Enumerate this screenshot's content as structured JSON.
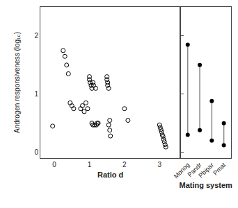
{
  "chart_data": [
    {
      "type": "scatter",
      "x": [
        -0.05,
        0.25,
        0.3,
        0.35,
        0.4,
        0.45,
        0.5,
        0.55,
        0.75,
        0.8,
        0.85,
        0.9,
        0.95,
        1.0,
        1.0,
        1.02,
        1.05,
        1.07,
        1.07,
        1.1,
        1.1,
        1.12,
        1.15,
        1.18,
        1.2,
        1.22,
        1.25,
        1.5,
        1.5,
        1.52,
        1.52,
        1.55,
        1.55,
        1.58,
        1.58,
        1.6,
        2.0,
        2.1,
        3.0,
        3.02,
        3.04,
        3.06,
        3.08,
        3.1,
        3.12,
        3.14,
        3.16,
        3.18
      ],
      "values": [
        0.45,
        1.75,
        1.65,
        1.5,
        1.35,
        0.85,
        0.8,
        0.75,
        0.75,
        0.8,
        0.7,
        0.85,
        0.75,
        1.3,
        1.25,
        1.2,
        1.15,
        1.1,
        0.5,
        1.2,
        0.47,
        1.15,
        0.47,
        1.1,
        0.47,
        0.5,
        0.5,
        1.3,
        1.25,
        1.2,
        1.15,
        1.1,
        0.47,
        0.38,
        0.55,
        0.28,
        0.75,
        0.55,
        0.47,
        0.43,
        0.39,
        0.35,
        0.3,
        0.27,
        0.22,
        0.18,
        0.13,
        0.09
      ],
      "xlabel": "Ratio d",
      "ylabel": "Androgen responsiveness (log₁₀)",
      "xlim": [
        -0.4,
        3.6
      ],
      "ylim": [
        -0.1,
        2.5
      ],
      "xticks": [
        0,
        1,
        2,
        3
      ],
      "yticks": [
        0,
        1,
        2
      ],
      "marker": "open circle",
      "color": "#000000",
      "grid": false
    },
    {
      "type": "range",
      "categories": [
        "Monog",
        "Pandr",
        "Pbipar",
        "Pmat"
      ],
      "upper": [
        1.85,
        1.5,
        0.88,
        0.5
      ],
      "lower": [
        0.3,
        0.38,
        0.2,
        0.12
      ],
      "xlabel": "Mating system",
      "ylim": [
        -0.1,
        2.5
      ],
      "yticks": [
        0,
        1,
        2
      ],
      "tick_labels": "x",
      "marker": "circle",
      "color": "#000000",
      "grid": false
    }
  ]
}
